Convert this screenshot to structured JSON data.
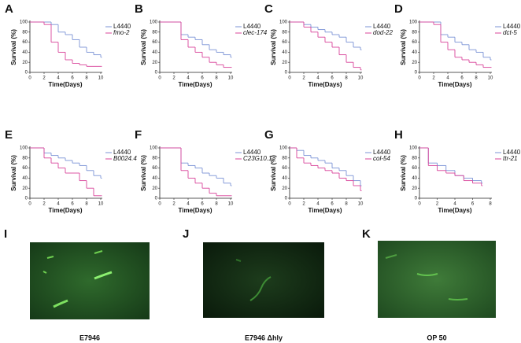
{
  "chart_data": [
    {
      "type": "step",
      "label": "A",
      "xlabel": "Time(Days)",
      "ylabel": "Survival (%)",
      "x": [
        0,
        1,
        2,
        3,
        4,
        5,
        6,
        7,
        8,
        9,
        10
      ],
      "xlim": [
        0,
        10
      ],
      "xticks": [
        0,
        2,
        4,
        6,
        8,
        10
      ],
      "ylim": [
        0,
        100
      ],
      "yticks": [
        0,
        20,
        40,
        60,
        80,
        100
      ],
      "legend": "upper right",
      "series": [
        {
          "name": "L4440",
          "color": "#7b93d6",
          "values": [
            100,
            100,
            100,
            95,
            80,
            75,
            65,
            50,
            40,
            35,
            30
          ]
        },
        {
          "name": "fmo-2",
          "color": "#d8449a",
          "values": [
            100,
            100,
            95,
            60,
            40,
            25,
            18,
            15,
            12,
            12,
            12
          ]
        }
      ]
    },
    {
      "type": "step",
      "label": "B",
      "xlabel": "Time(Days)",
      "ylabel": "Survival (%)",
      "x": [
        0,
        1,
        2,
        3,
        4,
        5,
        6,
        7,
        8,
        9,
        10
      ],
      "xlim": [
        0,
        10
      ],
      "xticks": [
        0,
        2,
        4,
        6,
        8,
        10
      ],
      "ylim": [
        0,
        100
      ],
      "yticks": [
        0,
        20,
        40,
        60,
        80,
        100
      ],
      "legend": "upper right",
      "series": [
        {
          "name": "L4440",
          "color": "#7b93d6",
          "values": [
            100,
            100,
            100,
            75,
            70,
            65,
            55,
            45,
            40,
            35,
            30
          ]
        },
        {
          "name": "clec-174",
          "color": "#d8449a",
          "values": [
            100,
            100,
            100,
            65,
            50,
            40,
            30,
            20,
            15,
            10,
            10
          ]
        }
      ]
    },
    {
      "type": "step",
      "label": "C",
      "xlabel": "Time(Days)",
      "ylabel": "Survival (%)",
      "x": [
        0,
        1,
        2,
        3,
        4,
        5,
        6,
        7,
        8,
        9,
        10
      ],
      "xlim": [
        0,
        10
      ],
      "xticks": [
        0,
        2,
        4,
        6,
        8,
        10
      ],
      "ylim": [
        0,
        100
      ],
      "yticks": [
        0,
        20,
        40,
        60,
        80,
        100
      ],
      "legend": "upper right",
      "series": [
        {
          "name": "L4440",
          "color": "#7b93d6",
          "values": [
            100,
            100,
            95,
            90,
            85,
            80,
            75,
            70,
            60,
            50,
            45
          ]
        },
        {
          "name": "dod-22",
          "color": "#d8449a",
          "values": [
            100,
            100,
            90,
            80,
            70,
            60,
            50,
            35,
            20,
            10,
            5
          ]
        }
      ]
    },
    {
      "type": "step",
      "label": "D",
      "xlabel": "Time(Days)",
      "ylabel": "Survival (%)",
      "x": [
        0,
        1,
        2,
        3,
        4,
        5,
        6,
        7,
        8,
        9,
        10
      ],
      "xlim": [
        0,
        10
      ],
      "xticks": [
        0,
        2,
        4,
        6,
        8,
        10
      ],
      "ylim": [
        0,
        100
      ],
      "yticks": [
        0,
        20,
        40,
        60,
        80,
        100
      ],
      "legend": "upper right",
      "series": [
        {
          "name": "L4440",
          "color": "#7b93d6",
          "values": [
            100,
            100,
            100,
            75,
            70,
            60,
            55,
            45,
            40,
            30,
            25
          ]
        },
        {
          "name": "dct-5",
          "color": "#d8449a",
          "values": [
            100,
            100,
            95,
            60,
            45,
            30,
            25,
            20,
            15,
            10,
            10
          ]
        }
      ]
    },
    {
      "type": "step",
      "label": "E",
      "xlabel": "Time(Days)",
      "ylabel": "Survival (%)",
      "x": [
        0,
        1,
        2,
        3,
        4,
        5,
        6,
        7,
        8,
        9,
        10
      ],
      "xlim": [
        0,
        10
      ],
      "xticks": [
        0,
        2,
        4,
        6,
        8,
        10
      ],
      "ylim": [
        0,
        100
      ],
      "yticks": [
        0,
        20,
        40,
        60,
        80,
        100
      ],
      "legend": "upper right",
      "series": [
        {
          "name": "L4440",
          "color": "#7b93d6",
          "values": [
            100,
            100,
            90,
            85,
            80,
            75,
            70,
            65,
            55,
            45,
            40
          ]
        },
        {
          "name": "B0024.4",
          "color": "#d8449a",
          "values": [
            100,
            100,
            80,
            70,
            60,
            50,
            50,
            35,
            20,
            5,
            5
          ]
        }
      ]
    },
    {
      "type": "step",
      "label": "F",
      "xlabel": "Time(Days)",
      "ylabel": "Survival (%)",
      "x": [
        0,
        1,
        2,
        3,
        4,
        5,
        6,
        7,
        8,
        9,
        10
      ],
      "xlim": [
        0,
        10
      ],
      "xticks": [
        0,
        2,
        4,
        6,
        8,
        10
      ],
      "ylim": [
        0,
        100
      ],
      "yticks": [
        0,
        20,
        40,
        60,
        80,
        100
      ],
      "legend": "upper right",
      "series": [
        {
          "name": "L4440",
          "color": "#7b93d6",
          "values": [
            100,
            100,
            100,
            70,
            65,
            60,
            50,
            45,
            40,
            30,
            25
          ]
        },
        {
          "name": "C23G10.1",
          "color": "#d8449a",
          "values": [
            100,
            100,
            100,
            55,
            40,
            30,
            20,
            10,
            5,
            5,
            5
          ]
        }
      ]
    },
    {
      "type": "step",
      "label": "G",
      "xlabel": "Time(Days)",
      "ylabel": "Survival (%)",
      "x": [
        0,
        1,
        2,
        3,
        4,
        5,
        6,
        7,
        8,
        9,
        10
      ],
      "xlim": [
        0,
        10
      ],
      "xticks": [
        0,
        2,
        4,
        6,
        8,
        10
      ],
      "ylim": [
        0,
        100
      ],
      "yticks": [
        0,
        20,
        40,
        60,
        80,
        100
      ],
      "legend": "upper right",
      "series": [
        {
          "name": "L4440",
          "color": "#7b93d6",
          "values": [
            100,
            95,
            85,
            80,
            75,
            70,
            60,
            55,
            45,
            35,
            25
          ]
        },
        {
          "name": "col-54",
          "color": "#d8449a",
          "values": [
            100,
            80,
            70,
            65,
            60,
            55,
            50,
            40,
            35,
            25,
            15
          ]
        }
      ]
    },
    {
      "type": "step",
      "label": "H",
      "xlabel": "Time(Days)",
      "ylabel": "Survival (%)",
      "x": [
        0,
        1,
        2,
        3,
        4,
        5,
        6,
        7
      ],
      "xlim": [
        0,
        8
      ],
      "xticks": [
        0,
        2,
        4,
        6,
        8
      ],
      "ylim": [
        0,
        100
      ],
      "yticks": [
        0,
        20,
        40,
        60,
        80,
        100
      ],
      "legend": "upper right",
      "series": [
        {
          "name": "L4440",
          "color": "#7b93d6",
          "values": [
            100,
            70,
            65,
            55,
            45,
            40,
            35,
            30
          ]
        },
        {
          "name": "ttr-21",
          "color": "#d8449a",
          "values": [
            100,
            65,
            55,
            50,
            45,
            35,
            30,
            25
          ]
        }
      ]
    }
  ],
  "images": [
    {
      "label": "I",
      "caption": "E7946"
    },
    {
      "label": "J",
      "caption": "E7946 Δhly"
    },
    {
      "label": "K",
      "caption": "OP 50"
    }
  ]
}
